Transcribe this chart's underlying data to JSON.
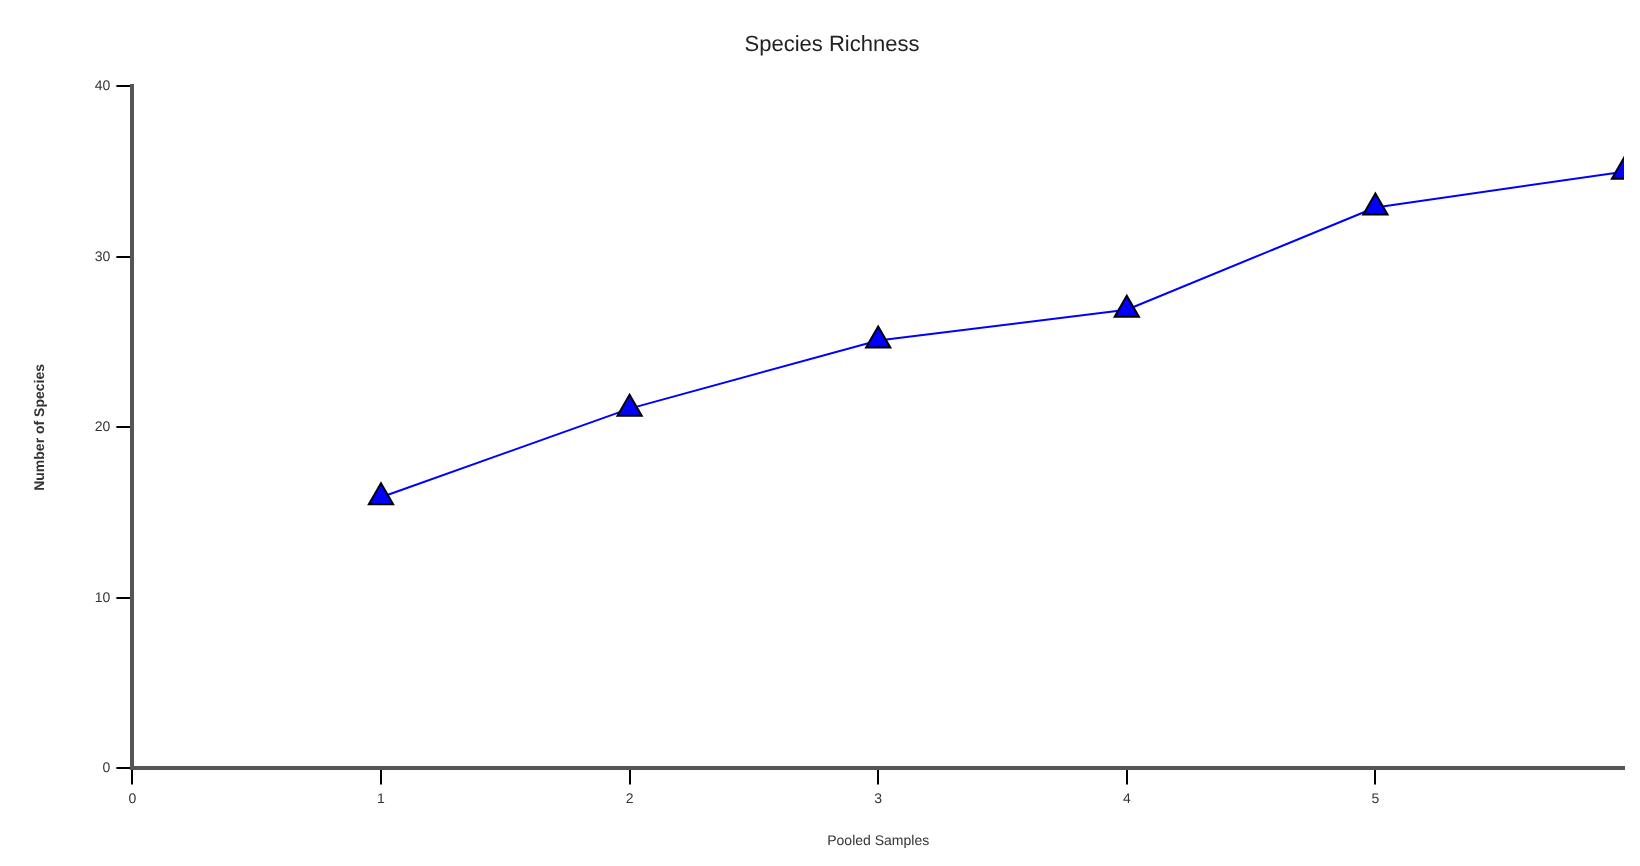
{
  "chart_data": {
    "type": "line",
    "title": "Species Richness",
    "xlabel": "Pooled Samples",
    "ylabel": "Number of Species",
    "x": [
      1,
      2,
      3,
      4,
      5,
      6
    ],
    "series": [
      {
        "color": "#0000ff",
        "values": [
          15.9,
          21.1,
          25.1,
          26.9,
          32.9,
          35.0
        ]
      }
    ],
    "xlim": [
      0,
      6
    ],
    "xticks": [
      0,
      1,
      2,
      3,
      4,
      5
    ],
    "ylim": [
      0,
      40
    ],
    "yticks": [
      0,
      10,
      20,
      30,
      40
    ],
    "grid": false,
    "legend": false,
    "marker": "triangle",
    "line_style": "solid"
  }
}
